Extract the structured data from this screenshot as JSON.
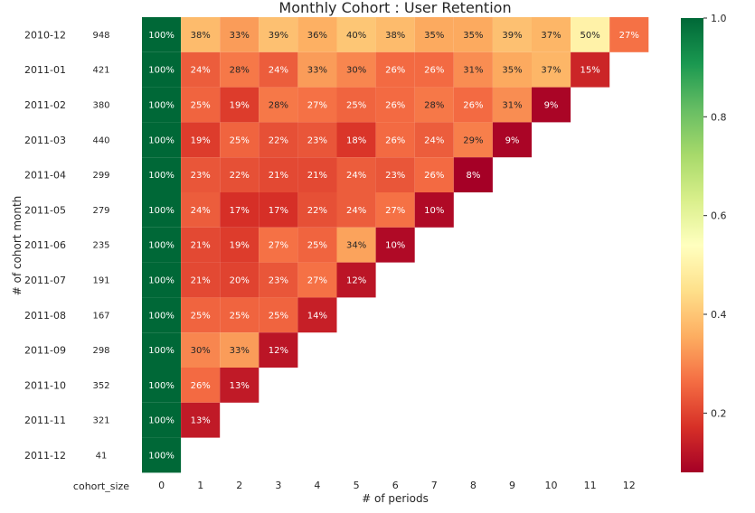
{
  "chart_data": {
    "type": "heatmap",
    "title": "Monthly Cohort : User Retention",
    "xlabel": "# of periods",
    "ylabel": "# of cohort month",
    "size_column_label": "cohort_size",
    "periods": [
      "0",
      "1",
      "2",
      "3",
      "4",
      "5",
      "6",
      "7",
      "8",
      "9",
      "10",
      "11",
      "12"
    ],
    "cohorts": [
      "2010-12",
      "2011-01",
      "2011-02",
      "2011-03",
      "2011-04",
      "2011-05",
      "2011-06",
      "2011-07",
      "2011-08",
      "2011-09",
      "2011-10",
      "2011-11",
      "2011-12"
    ],
    "cohort_sizes": [
      "948",
      "421",
      "380",
      "440",
      "299",
      "279",
      "235",
      "191",
      "167",
      "298",
      "352",
      "321",
      "41"
    ],
    "values": [
      [
        1.0,
        0.38,
        0.33,
        0.39,
        0.36,
        0.4,
        0.38,
        0.35,
        0.35,
        0.39,
        0.37,
        0.5,
        0.27
      ],
      [
        1.0,
        0.24,
        0.28,
        0.24,
        0.33,
        0.3,
        0.26,
        0.26,
        0.31,
        0.35,
        0.37,
        0.15
      ],
      [
        1.0,
        0.25,
        0.19,
        0.28,
        0.27,
        0.25,
        0.26,
        0.28,
        0.26,
        0.31,
        0.09
      ],
      [
        1.0,
        0.19,
        0.25,
        0.22,
        0.23,
        0.18,
        0.26,
        0.24,
        0.29,
        0.09
      ],
      [
        1.0,
        0.23,
        0.22,
        0.21,
        0.21,
        0.24,
        0.23,
        0.26,
        0.08
      ],
      [
        1.0,
        0.24,
        0.17,
        0.17,
        0.22,
        0.24,
        0.27,
        0.1
      ],
      [
        1.0,
        0.21,
        0.19,
        0.27,
        0.25,
        0.34,
        0.1
      ],
      [
        1.0,
        0.21,
        0.2,
        0.23,
        0.27,
        0.12
      ],
      [
        1.0,
        0.25,
        0.25,
        0.25,
        0.14
      ],
      [
        1.0,
        0.3,
        0.33,
        0.12
      ],
      [
        1.0,
        0.26,
        0.13
      ],
      [
        1.0,
        0.13
      ],
      [
        1.0
      ]
    ],
    "colorbar": {
      "min": 0.08,
      "max": 1.0,
      "ticks": [
        "0.2",
        "0.4",
        "0.6",
        "0.8",
        "1.0"
      ],
      "colormap": "RdYlGn"
    },
    "colors": {
      "low": "#a50026",
      "mid": "#ffffbf",
      "high": "#006837",
      "cell_border": "#ffffff"
    }
  }
}
